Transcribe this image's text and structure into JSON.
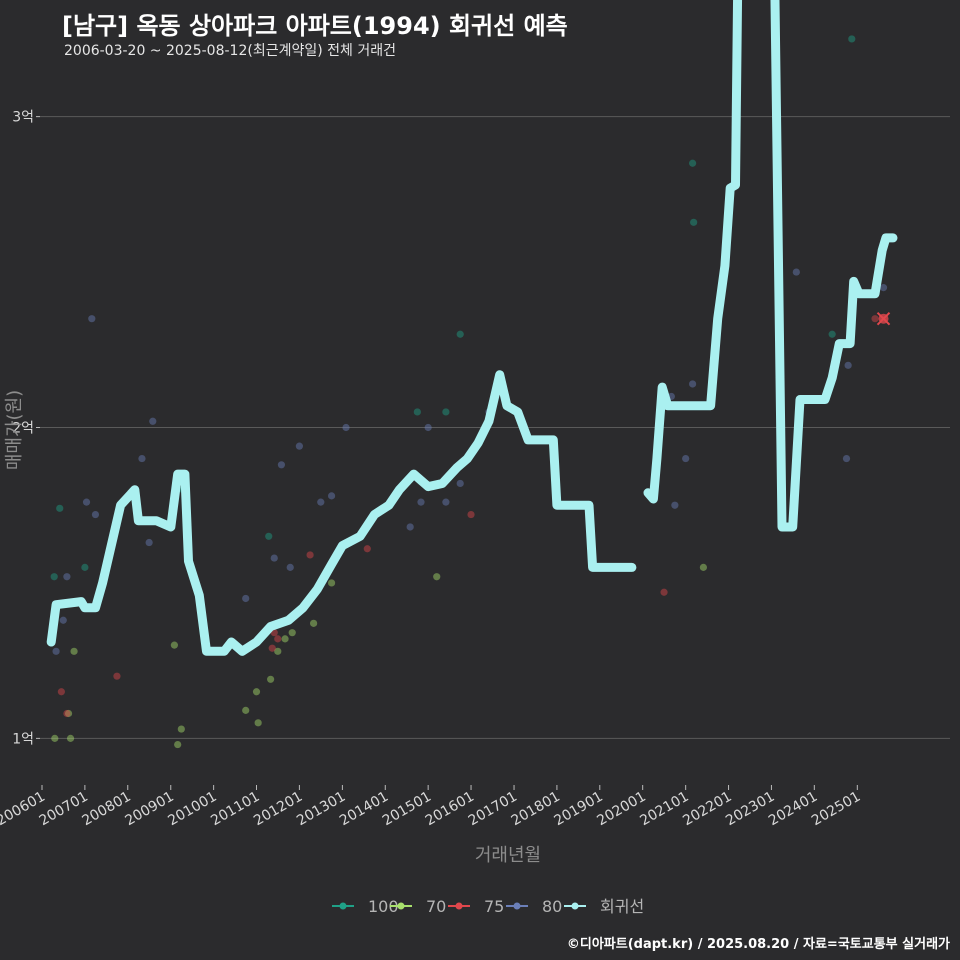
{
  "header": {
    "title": "[남구] 옥동 상아파크 아파트(1994) 회귀선 예측",
    "subtitle": "2006-03-20 ~ 2025-08-12(최근계약일) 전체 거래건"
  },
  "footer": {
    "credit": "©디아파트(dapt.kr) / 2025.08.20 / 자료=국토교통부 실거래가"
  },
  "colors": {
    "background": "#2b2b2d",
    "grid": "#5a5a5a",
    "s100": "#1fa187",
    "s70": "#a8e06c",
    "s75": "#e0474c",
    "s80": "#6b7fb8",
    "regression": "#aaf0f0"
  },
  "chart_data": {
    "type": "scatter",
    "xlabel": "거래년월",
    "ylabel": "매매가(원)",
    "x_range": [
      "2005-12-15",
      "2027-03-01"
    ],
    "ylim": [
      0.85,
      3.15
    ],
    "y_ticks": [
      {
        "value": 1,
        "label": "1억"
      },
      {
        "value": 2,
        "label": "2억"
      },
      {
        "value": 3,
        "label": "3억"
      }
    ],
    "x_ticks": [
      {
        "date": "2006-01-01",
        "label": "200601"
      },
      {
        "date": "2007-01-01",
        "label": "200701"
      },
      {
        "date": "2008-01-01",
        "label": "200801"
      },
      {
        "date": "2009-01-01",
        "label": "200901"
      },
      {
        "date": "2010-01-01",
        "label": "201001"
      },
      {
        "date": "2011-01-01",
        "label": "201101"
      },
      {
        "date": "2012-01-01",
        "label": "201201"
      },
      {
        "date": "2013-01-01",
        "label": "201301"
      },
      {
        "date": "2014-01-01",
        "label": "201401"
      },
      {
        "date": "2015-01-01",
        "label": "201501"
      },
      {
        "date": "2016-01-01",
        "label": "201601"
      },
      {
        "date": "2017-01-01",
        "label": "201701"
      },
      {
        "date": "2018-01-01",
        "label": "201801"
      },
      {
        "date": "2019-01-01",
        "label": "201901"
      },
      {
        "date": "2020-01-01",
        "label": "202001"
      },
      {
        "date": "2021-01-01",
        "label": "202101"
      },
      {
        "date": "2022-01-01",
        "label": "202201"
      },
      {
        "date": "2023-01-01",
        "label": "202301"
      },
      {
        "date": "2024-01-01",
        "label": "202401"
      },
      {
        "date": "2025-01-01",
        "label": "202501"
      }
    ],
    "legend": {
      "position": "bottom",
      "entries": [
        {
          "key": "s100",
          "label": "100"
        },
        {
          "key": "s70",
          "label": "70"
        },
        {
          "key": "s75",
          "label": "75"
        },
        {
          "key": "s80",
          "label": "80"
        },
        {
          "key": "regression",
          "label": "회귀선"
        }
      ]
    },
    "series": [
      {
        "name": "100",
        "color": "s100",
        "points": [
          [
            "2006-06-01",
            1.74
          ],
          [
            "2006-04-15",
            1.52
          ],
          [
            "2007-01-01",
            1.55
          ],
          [
            "2009-04-15",
            1.8
          ],
          [
            "2011-04-15",
            1.65
          ],
          [
            "2015-06-01",
            2.05
          ],
          [
            "2014-10-01",
            2.05
          ],
          [
            "2015-10-01",
            2.3
          ],
          [
            "2021-03-01",
            2.85
          ],
          [
            "2021-03-10",
            2.66
          ],
          [
            "2024-11-15",
            3.25
          ],
          [
            "2024-06-01",
            2.3
          ]
        ]
      },
      {
        "name": "70",
        "color": "s70",
        "points": [
          [
            "2006-04-20",
            1.0
          ],
          [
            "2006-09-01",
            1.0
          ],
          [
            "2006-08-15",
            1.08
          ],
          [
            "2006-10-01",
            1.28
          ],
          [
            "2009-03-01",
            0.98
          ],
          [
            "2009-04-01",
            1.03
          ],
          [
            "2010-10-01",
            1.09
          ],
          [
            "2011-01-15",
            1.05
          ],
          [
            "2011-01-01",
            1.15
          ],
          [
            "2011-05-01",
            1.19
          ],
          [
            "2011-07-01",
            1.28
          ],
          [
            "2011-09-01",
            1.32
          ],
          [
            "2011-11-01",
            1.34
          ],
          [
            "2012-05-01",
            1.37
          ],
          [
            "2012-10-01",
            1.5
          ],
          [
            "2015-03-15",
            1.52
          ],
          [
            "2021-06-01",
            1.55
          ],
          [
            "2009-02-01",
            1.3
          ]
        ]
      },
      {
        "name": "75",
        "color": "s75",
        "points": [
          [
            "2006-06-15",
            1.15
          ],
          [
            "2006-08-01",
            1.08
          ],
          [
            "2007-10-01",
            1.2
          ],
          [
            "2011-06-01",
            1.34
          ],
          [
            "2011-07-01",
            1.32
          ],
          [
            "2011-05-15",
            1.29
          ],
          [
            "2012-04-01",
            1.59
          ],
          [
            "2013-08-01",
            1.61
          ],
          [
            "2016-01-01",
            1.72
          ],
          [
            "2020-07-01",
            1.47
          ],
          [
            "2023-04-01",
            1.68
          ],
          [
            "2025-06-01",
            2.35
          ]
        ]
      },
      {
        "name": "80",
        "color": "s80",
        "points": [
          [
            "2006-05-01",
            1.28
          ],
          [
            "2006-07-01",
            1.38
          ],
          [
            "2006-08-01",
            1.52
          ],
          [
            "2007-01-15",
            1.76
          ],
          [
            "2007-03-01",
            2.35
          ],
          [
            "2007-04-01",
            1.72
          ],
          [
            "2008-05-01",
            1.9
          ],
          [
            "2008-08-01",
            2.02
          ],
          [
            "2008-07-01",
            1.63
          ],
          [
            "2010-10-01",
            1.45
          ],
          [
            "2010-12-01",
            1.3
          ],
          [
            "2011-06-01",
            1.58
          ],
          [
            "2011-08-01",
            1.88
          ],
          [
            "2011-10-15",
            1.55
          ],
          [
            "2012-01-01",
            1.94
          ],
          [
            "2012-07-01",
            1.76
          ],
          [
            "2012-10-01",
            1.78
          ],
          [
            "2013-02-01",
            2.0
          ],
          [
            "2014-08-01",
            1.68
          ],
          [
            "2014-11-01",
            1.76
          ],
          [
            "2015-01-01",
            2.0
          ],
          [
            "2015-06-01",
            1.76
          ],
          [
            "2015-10-01",
            1.82
          ],
          [
            "2016-06-01",
            2.05
          ],
          [
            "2016-09-01",
            2.15
          ],
          [
            "2020-09-01",
            2.1
          ],
          [
            "2020-10-01",
            1.75
          ],
          [
            "2021-01-01",
            1.9
          ],
          [
            "2021-03-01",
            2.14
          ],
          [
            "2023-08-01",
            2.5
          ],
          [
            "2024-10-01",
            1.9
          ],
          [
            "2024-10-15",
            2.2
          ],
          [
            "2025-08-12",
            2.45
          ]
        ]
      }
    ],
    "regression_segments": [
      [
        [
          "2006-03-20",
          1.31
        ],
        [
          "2006-05-01",
          1.43
        ],
        [
          "2006-12-01",
          1.44
        ],
        [
          "2007-01-01",
          1.42
        ],
        [
          "2007-04-01",
          1.42
        ],
        [
          "2007-06-01",
          1.5
        ],
        [
          "2007-08-01",
          1.6
        ],
        [
          "2007-11-01",
          1.75
        ],
        [
          "2008-03-01",
          1.8
        ],
        [
          "2008-04-01",
          1.7
        ],
        [
          "2008-09-01",
          1.7
        ],
        [
          "2009-01-01",
          1.68
        ],
        [
          "2009-03-01",
          1.85
        ],
        [
          "2009-05-01",
          1.85
        ],
        [
          "2009-06-01",
          1.57
        ],
        [
          "2009-09-01",
          1.46
        ],
        [
          "2009-11-01",
          1.28
        ],
        [
          "2010-04-01",
          1.28
        ],
        [
          "2010-06-01",
          1.31
        ],
        [
          "2010-09-01",
          1.28
        ],
        [
          "2011-01-01",
          1.31
        ],
        [
          "2011-05-01",
          1.36
        ],
        [
          "2011-10-01",
          1.38
        ],
        [
          "2012-02-01",
          1.42
        ],
        [
          "2012-06-01",
          1.48
        ],
        [
          "2012-10-01",
          1.56
        ],
        [
          "2013-01-01",
          1.62
        ],
        [
          "2013-06-01",
          1.65
        ],
        [
          "2013-10-01",
          1.72
        ],
        [
          "2014-02-01",
          1.75
        ],
        [
          "2014-05-01",
          1.8
        ],
        [
          "2014-09-01",
          1.85
        ],
        [
          "2015-01-01",
          1.81
        ],
        [
          "2015-05-01",
          1.82
        ],
        [
          "2015-09-01",
          1.87
        ],
        [
          "2015-12-01",
          1.9
        ],
        [
          "2016-03-01",
          1.95
        ],
        [
          "2016-06-01",
          2.02
        ],
        [
          "2016-09-01",
          2.17
        ],
        [
          "2016-11-01",
          2.07
        ],
        [
          "2017-02-01",
          2.05
        ],
        [
          "2017-05-01",
          1.96
        ],
        [
          "2017-12-01",
          1.96
        ],
        [
          "2018-01-01",
          1.75
        ],
        [
          "2018-10-01",
          1.75
        ],
        [
          "2018-11-01",
          1.55
        ],
        [
          "2019-10-01",
          1.55
        ]
      ],
      [
        [
          "2020-02-15",
          1.79
        ],
        [
          "2020-04-01",
          1.77
        ],
        [
          "2020-05-01",
          1.9
        ],
        [
          "2020-06-15",
          2.13
        ],
        [
          "2020-08-01",
          2.07
        ],
        [
          "2021-03-01",
          2.07
        ],
        [
          "2021-08-01",
          2.07
        ],
        [
          "2021-10-01",
          2.35
        ],
        [
          "2021-12-01",
          2.52
        ],
        [
          "2022-01-15",
          2.77
        ],
        [
          "2022-03-01",
          2.78
        ],
        [
          "2022-04-01",
          3.83
        ],
        [
          "2023-01-15",
          3.83
        ],
        [
          "2023-04-01",
          1.68
        ],
        [
          "2023-07-01",
          1.68
        ],
        [
          "2023-09-01",
          2.09
        ],
        [
          "2024-04-01",
          2.09
        ],
        [
          "2024-06-01",
          2.16
        ],
        [
          "2024-08-01",
          2.27
        ],
        [
          "2024-11-01",
          2.27
        ],
        [
          "2024-12-01",
          2.47
        ],
        [
          "2025-01-15",
          2.43
        ],
        [
          "2025-06-01",
          2.43
        ],
        [
          "2025-08-01",
          2.57
        ],
        [
          "2025-09-01",
          2.61
        ],
        [
          "2025-11-01",
          2.61
        ]
      ]
    ],
    "forecast_marker": {
      "date": "2025-08-12",
      "value": 2.35
    }
  }
}
